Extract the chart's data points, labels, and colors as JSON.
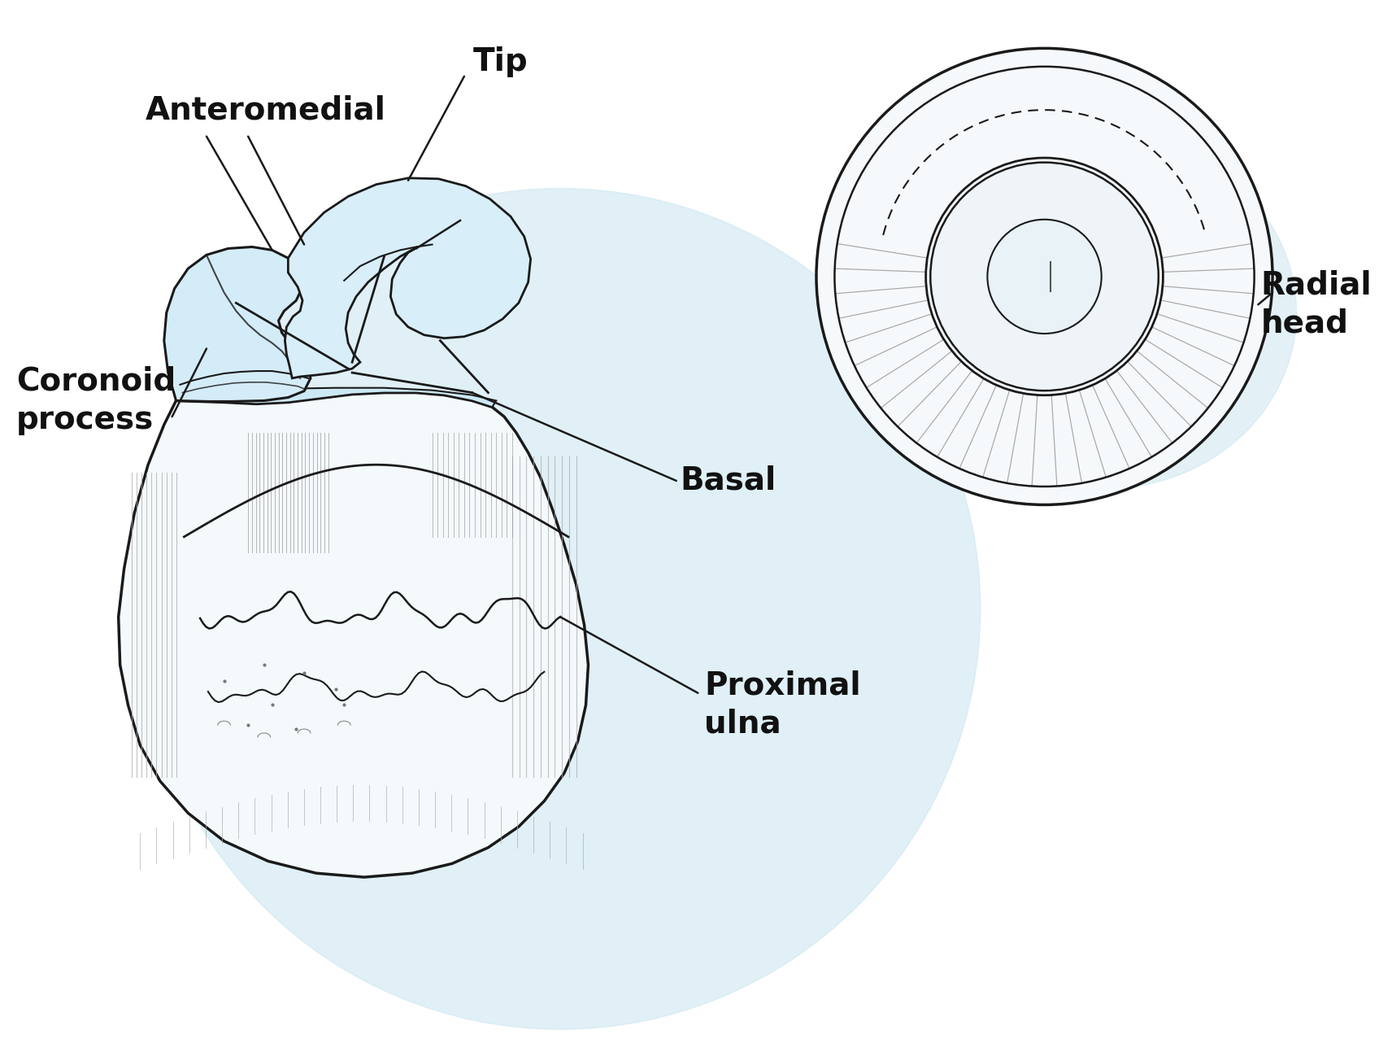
{
  "background_color": "#ffffff",
  "glow_color": "#cce6f0",
  "bone_fill_white": "#f8fbfd",
  "bone_fill_blue": "#d4ecf7",
  "bone_stroke": "#1a1a1a",
  "figsize": [
    17.12,
    12.93
  ],
  "dpi": 100,
  "labels": {
    "tip": "Tip",
    "anteromedial": "Anteromedial",
    "coronoid_process": "Coronoid\nprocess",
    "basal": "Basal",
    "proximal_ulna": "Proximal\nulna",
    "radial_head": "Radial\nhead"
  }
}
